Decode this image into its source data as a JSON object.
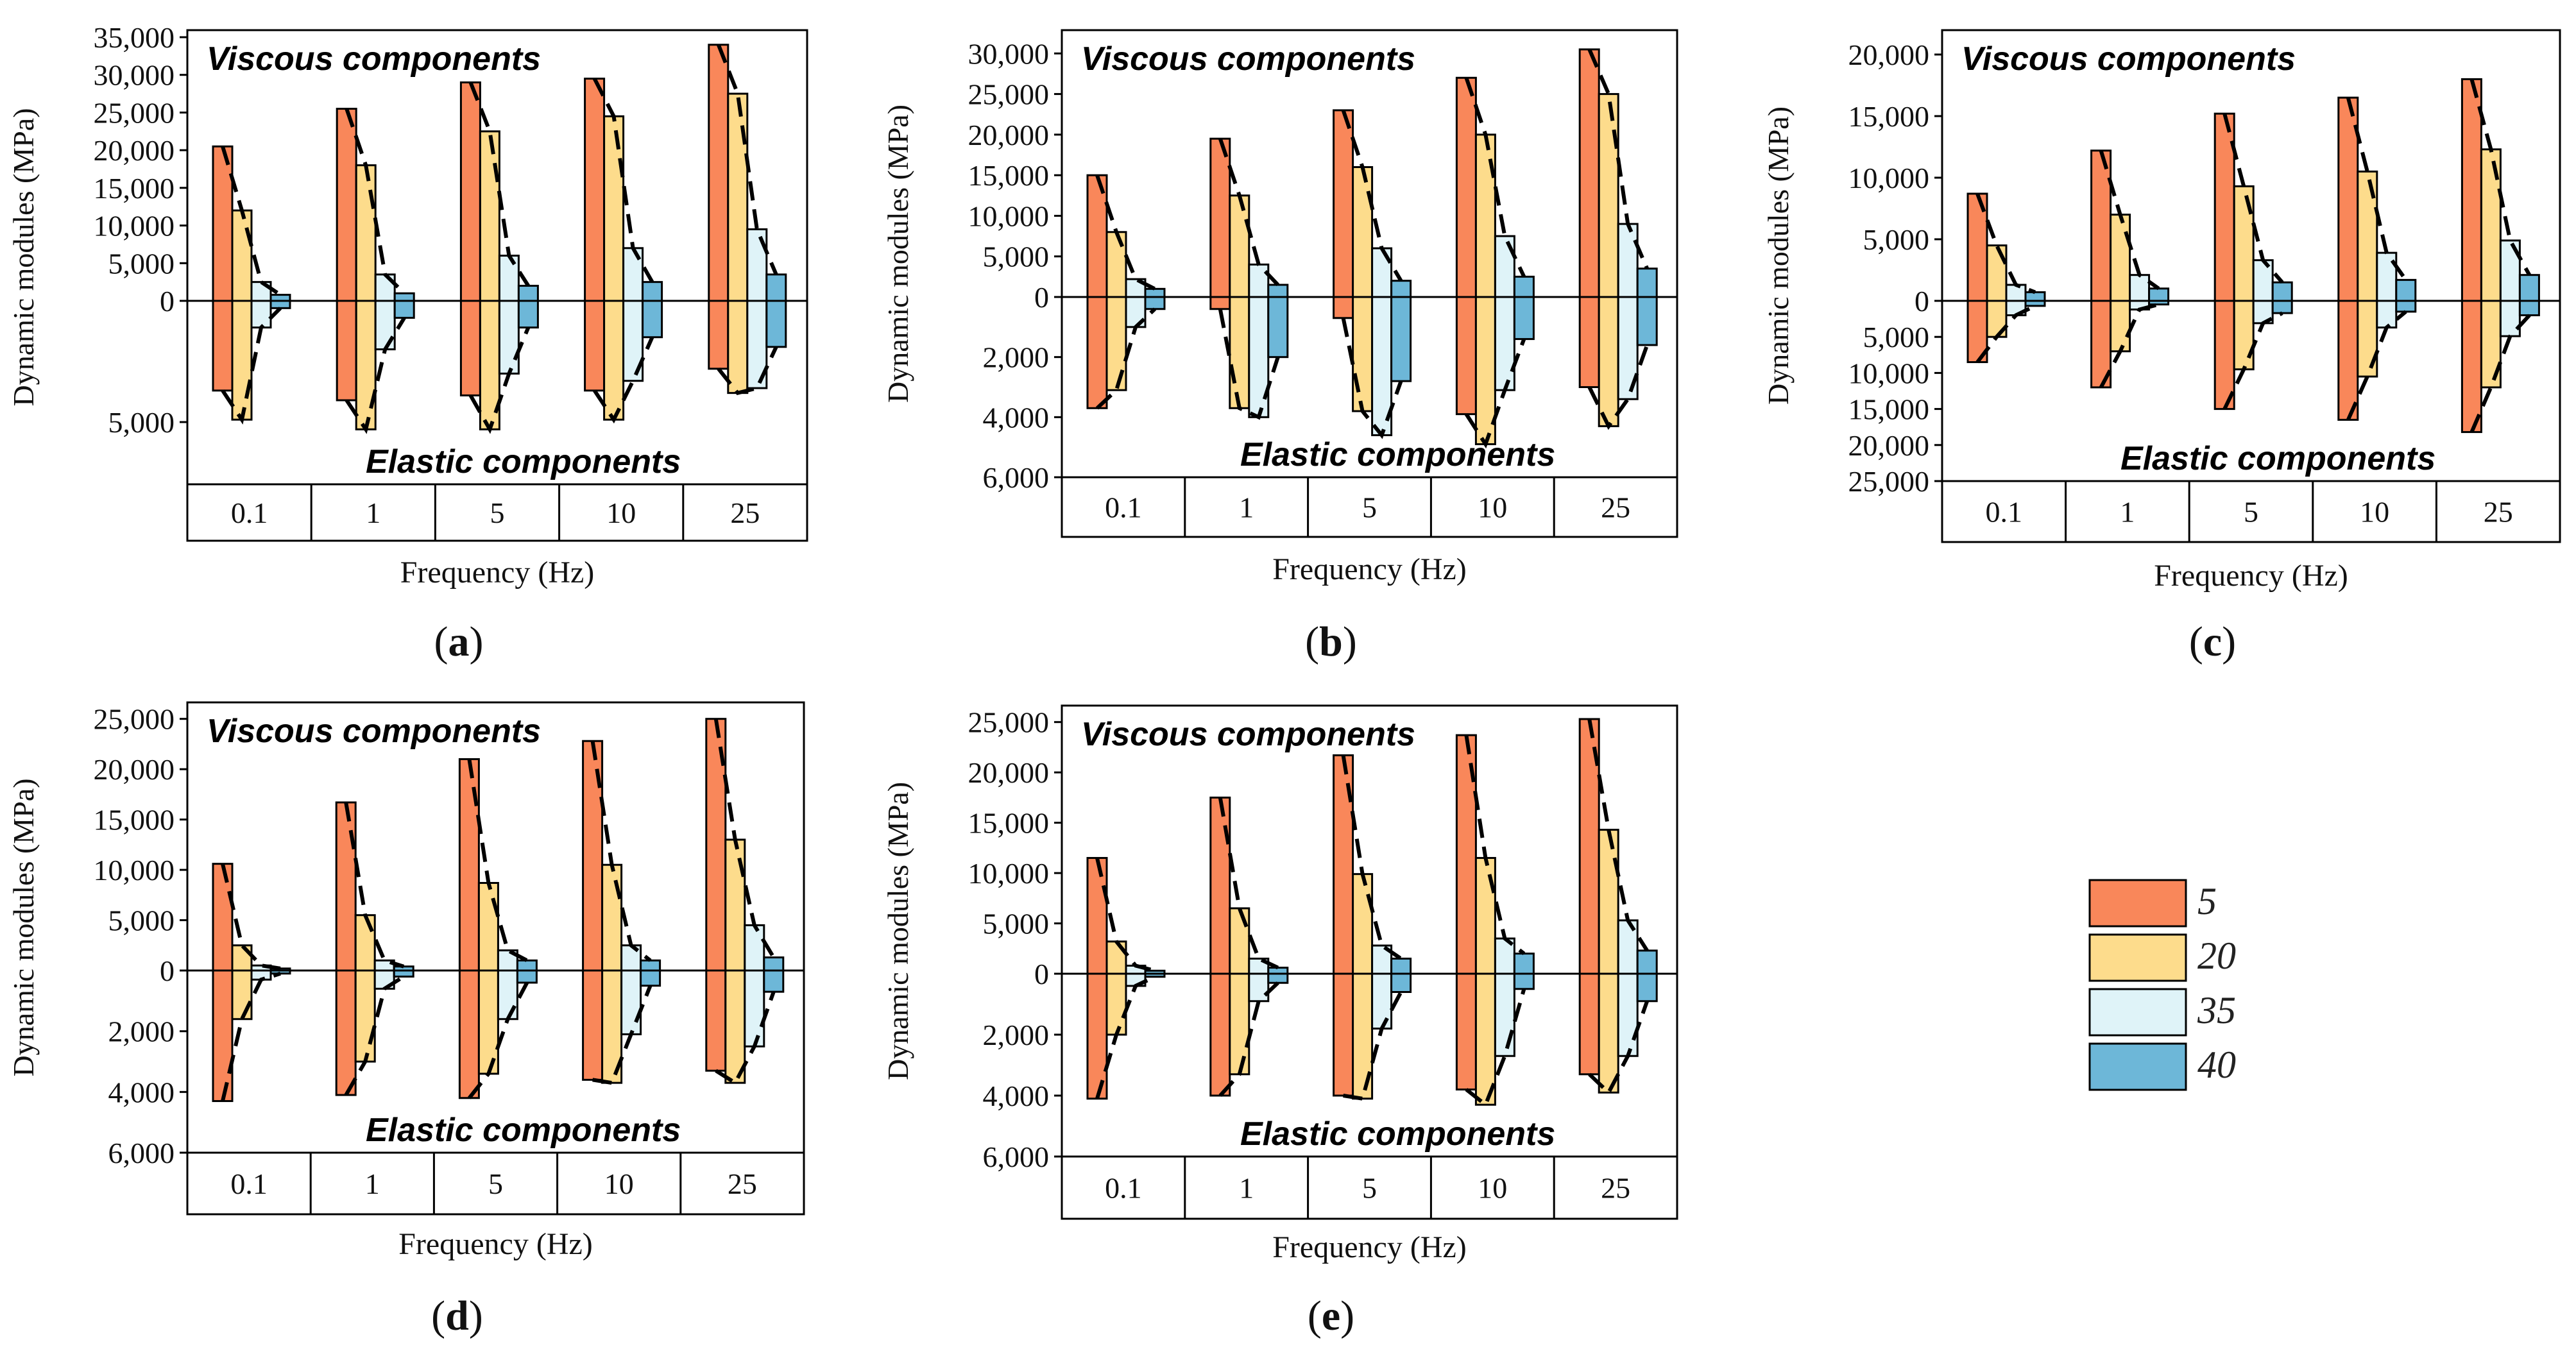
{
  "colors": {
    "5": "#F9875A",
    "20": "#FDDC8C",
    "35": "#DFF3F8",
    "40": "#6DB7D8"
  },
  "legend": {
    "entries": [
      "5",
      "20",
      "35",
      "40"
    ]
  },
  "common": {
    "ylabel": "Dynamic modules (MPa)",
    "xlabel": "Frequency (Hz)",
    "viscous_label": "Viscous components",
    "elastic_label": "Elastic  components"
  },
  "chart_data": [
    {
      "type": "bar",
      "panel": "(a)",
      "categories": [
        "0.1",
        "1",
        "5",
        "10",
        "25"
      ],
      "series_names": [
        "5",
        "20",
        "35",
        "40"
      ],
      "upper_ticks": [
        "0",
        "5,000",
        "10,000",
        "15,000",
        "20,000",
        "25,000",
        "30,000",
        "35,000"
      ],
      "lower_ticks": [
        "5,000"
      ],
      "upper_max": 35000,
      "lower_max": 5000,
      "viscous": [
        [
          20500,
          12000,
          2500,
          800
        ],
        [
          25500,
          18000,
          3500,
          1000
        ],
        [
          29000,
          22500,
          6000,
          2000
        ],
        [
          29500,
          24500,
          7000,
          2500
        ],
        [
          34000,
          27500,
          9500,
          3500
        ]
      ],
      "elastic": [
        [
          3700,
          4900,
          1100,
          300
        ],
        [
          4100,
          5300,
          2000,
          700
        ],
        [
          3900,
          5300,
          3000,
          1100
        ],
        [
          3700,
          4900,
          3300,
          1500
        ],
        [
          2800,
          3800,
          3600,
          1900
        ]
      ]
    },
    {
      "type": "bar",
      "panel": "(b)",
      "categories": [
        "0.1",
        "1",
        "5",
        "10",
        "25"
      ],
      "series_names": [
        "5",
        "20",
        "35",
        "40"
      ],
      "upper_ticks": [
        "0",
        "5,000",
        "10,000",
        "15,000",
        "20,000",
        "25,000",
        "30,000"
      ],
      "lower_ticks": [
        "2,000",
        "4,000",
        "6,000"
      ],
      "upper_max": 32000,
      "lower_max": 6000,
      "viscous": [
        [
          15000,
          8000,
          2200,
          1000
        ],
        [
          19500,
          12500,
          4000,
          1500
        ],
        [
          23000,
          16000,
          6000,
          2000
        ],
        [
          27000,
          20000,
          7500,
          2500
        ],
        [
          30500,
          25000,
          9000,
          3500
        ]
      ],
      "elastic": [
        [
          3700,
          3100,
          1000,
          400
        ],
        [
          400,
          3700,
          4000,
          2000
        ],
        [
          700,
          3800,
          4600,
          2800
        ],
        [
          3900,
          4900,
          3100,
          1400
        ],
        [
          3000,
          4300,
          3400,
          1600
        ]
      ]
    },
    {
      "type": "bar",
      "panel": "(c)",
      "categories": [
        "0.1",
        "1",
        "5",
        "10",
        "25"
      ],
      "series_names": [
        "5",
        "20",
        "35",
        "40"
      ],
      "upper_ticks": [
        "0",
        "5,000",
        "10,000",
        "15,000",
        "20,000"
      ],
      "lower_ticks": [
        "5,000",
        "10,000",
        "15,000",
        "20,000",
        "25,000"
      ],
      "upper_max": 20000,
      "lower_max": 25000,
      "viscous": [
        [
          8700,
          4500,
          1300,
          700
        ],
        [
          12200,
          7000,
          2100,
          1000
        ],
        [
          15200,
          9300,
          3300,
          1500
        ],
        [
          16500,
          10500,
          3900,
          1700
        ],
        [
          18000,
          12300,
          4900,
          2100
        ]
      ],
      "elastic": [
        [
          8500,
          5000,
          2000,
          700
        ],
        [
          12000,
          7000,
          1200,
          500
        ],
        [
          15000,
          9500,
          3100,
          1700
        ],
        [
          16500,
          10500,
          3700,
          1500
        ],
        [
          18200,
          12000,
          4900,
          2000
        ]
      ]
    },
    {
      "type": "bar",
      "panel": "(d)",
      "categories": [
        "0.1",
        "1",
        "5",
        "10",
        "25"
      ],
      "series_names": [
        "5",
        "20",
        "35",
        "40"
      ],
      "upper_ticks": [
        "0",
        "5,000",
        "10,000",
        "15,000",
        "20,000",
        "25,000"
      ],
      "lower_ticks": [
        "2,000",
        "4,000",
        "6,000"
      ],
      "upper_max": 26000,
      "lower_max": 6000,
      "viscous": [
        [
          10600,
          2500,
          500,
          200
        ],
        [
          16700,
          5500,
          1000,
          400
        ],
        [
          21000,
          8700,
          2000,
          1000
        ],
        [
          22800,
          10500,
          2500,
          1000
        ],
        [
          25000,
          13000,
          4500,
          1300
        ]
      ],
      "elastic": [
        [
          4300,
          1600,
          300,
          100
        ],
        [
          4100,
          3000,
          600,
          200
        ],
        [
          4200,
          3400,
          1600,
          400
        ],
        [
          3600,
          3700,
          2100,
          500
        ],
        [
          3300,
          3700,
          2500,
          700
        ]
      ]
    },
    {
      "type": "bar",
      "panel": "(e)",
      "categories": [
        "0.1",
        "1",
        "5",
        "10",
        "25"
      ],
      "series_names": [
        "5",
        "20",
        "35",
        "40"
      ],
      "upper_ticks": [
        "0",
        "5,000",
        "10,000",
        "15,000",
        "20,000",
        "25,000"
      ],
      "lower_ticks": [
        "2,000",
        "4,000",
        "6,000"
      ],
      "upper_max": 26000,
      "lower_max": 6000,
      "viscous": [
        [
          11500,
          3200,
          800,
          300
        ],
        [
          17500,
          6500,
          1500,
          600
        ],
        [
          21700,
          9900,
          2800,
          1500
        ],
        [
          23700,
          11500,
          3500,
          2000
        ],
        [
          25300,
          14300,
          5300,
          2300
        ]
      ],
      "elastic": [
        [
          4100,
          2000,
          400,
          100
        ],
        [
          4000,
          3300,
          900,
          300
        ],
        [
          4000,
          4100,
          1800,
          600
        ],
        [
          3800,
          4300,
          2700,
          500
        ],
        [
          3300,
          3900,
          2700,
          900
        ]
      ]
    }
  ]
}
